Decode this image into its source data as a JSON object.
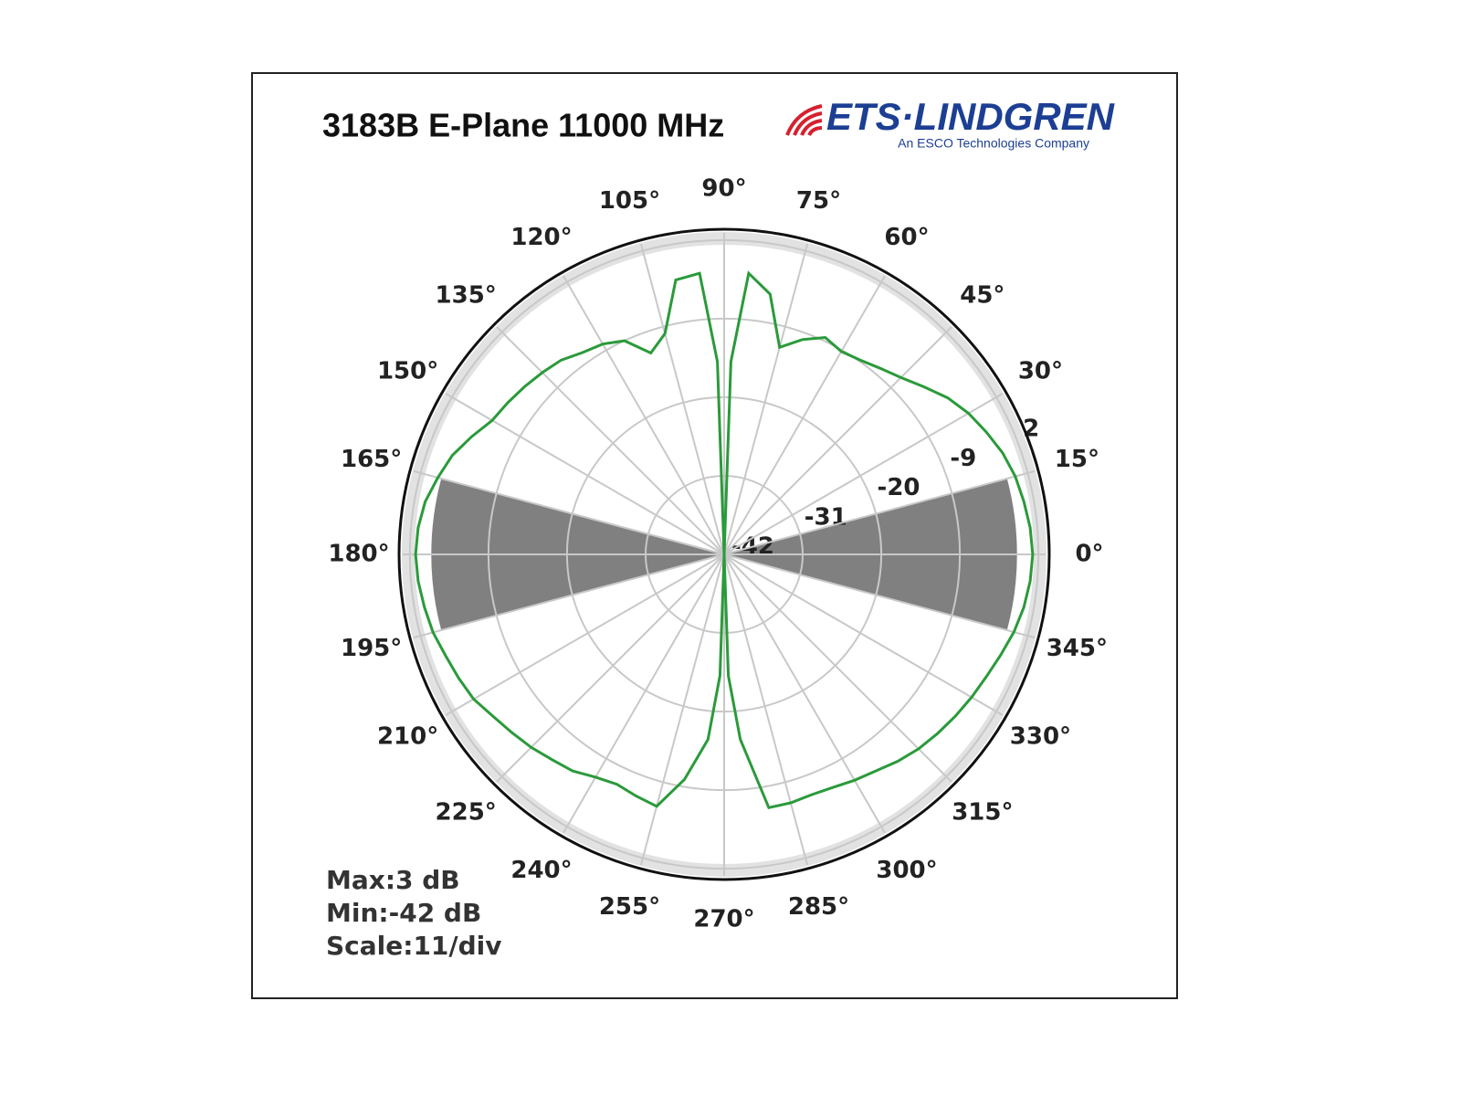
{
  "chart_data": {
    "type": "polar",
    "title": "3183B E-Plane 11000 MHz",
    "logo": {
      "name": "ETS·LINDGREN",
      "tagline": "An ESCO Technologies Company"
    },
    "stats": [
      "Max:3 dB",
      "Min:-42 dB",
      "Scale:11/div"
    ],
    "x": [
      0,
      5,
      10,
      15,
      20,
      25,
      30,
      35,
      40,
      45,
      50,
      55,
      60,
      65,
      70,
      75,
      80,
      85,
      88,
      90,
      92,
      95,
      100,
      105,
      110,
      115,
      120,
      125,
      130,
      135,
      140,
      145,
      150,
      155,
      160,
      165,
      170,
      175,
      180,
      185,
      190,
      195,
      200,
      205,
      210,
      215,
      220,
      225,
      230,
      235,
      240,
      245,
      250,
      255,
      260,
      265,
      268,
      270,
      272,
      275,
      280,
      285,
      290,
      295,
      300,
      305,
      310,
      315,
      320,
      325,
      330,
      335,
      340,
      345,
      350,
      355
    ],
    "series": [
      {
        "color": "#2a9a3a",
        "values": [
          1.2,
          1.0,
          0.6,
          0.2,
          -0.5,
          -1.5,
          -2.5,
          -3.8,
          -5.5,
          -7,
          -8,
          -8.8,
          -9.2,
          -8.5,
          -10,
          -12,
          -5,
          -2.5,
          -15,
          -42,
          -15,
          -2.5,
          -3,
          -10,
          -12,
          -9,
          -8,
          -7.5,
          -6.5,
          -6,
          -5.5,
          -5,
          -4.5,
          -3,
          -1.5,
          -0.5,
          0.5,
          1,
          1.2,
          1,
          0.6,
          0.2,
          -0.5,
          -1,
          -1.5,
          -2.5,
          -3.2,
          -3.8,
          -4.5,
          -5,
          -6,
          -6.5,
          -6,
          -5.5,
          -10,
          -16,
          -25,
          -42,
          -25,
          -16,
          -6,
          -6,
          -6.2,
          -6,
          -5.5,
          -5,
          -4.2,
          -3.5,
          -3,
          -2.5,
          -2,
          -1.5,
          -0.8,
          0,
          0.6,
          1
        ]
      }
    ],
    "shaded_sectors": [
      {
        "from": 165,
        "to": 195,
        "r": -1
      },
      {
        "from": -15,
        "to": 15,
        "r": -1
      }
    ],
    "shade_color": "#808080",
    "ylim": [
      -42,
      3
    ],
    "yticks": [
      -42,
      -31,
      -20,
      -9,
      2
    ],
    "xticks": [
      {
        "value": 0,
        "label": "0°"
      },
      {
        "value": 15,
        "label": "15°"
      },
      {
        "value": 30,
        "label": "30°"
      },
      {
        "value": 45,
        "label": "45°"
      },
      {
        "value": 60,
        "label": "60°"
      },
      {
        "value": 75,
        "label": "75°"
      },
      {
        "value": 90,
        "label": "90°"
      },
      {
        "value": 105,
        "label": "105°"
      },
      {
        "value": 120,
        "label": "120°"
      },
      {
        "value": 135,
        "label": "135°"
      },
      {
        "value": 150,
        "label": "150°"
      },
      {
        "value": 165,
        "label": "165°"
      },
      {
        "value": 180,
        "label": "180°"
      },
      {
        "value": 195,
        "label": "195°"
      },
      {
        "value": 210,
        "label": "210°"
      },
      {
        "value": 225,
        "label": "225°"
      },
      {
        "value": 240,
        "label": "240°"
      },
      {
        "value": 255,
        "label": "255°"
      },
      {
        "value": 270,
        "label": "270°"
      },
      {
        "value": 285,
        "label": "285°"
      },
      {
        "value": 300,
        "label": "300°"
      },
      {
        "value": 315,
        "label": "315°"
      },
      {
        "value": 330,
        "label": "330°"
      },
      {
        "value": 345,
        "label": "345°"
      }
    ],
    "grid": true
  }
}
